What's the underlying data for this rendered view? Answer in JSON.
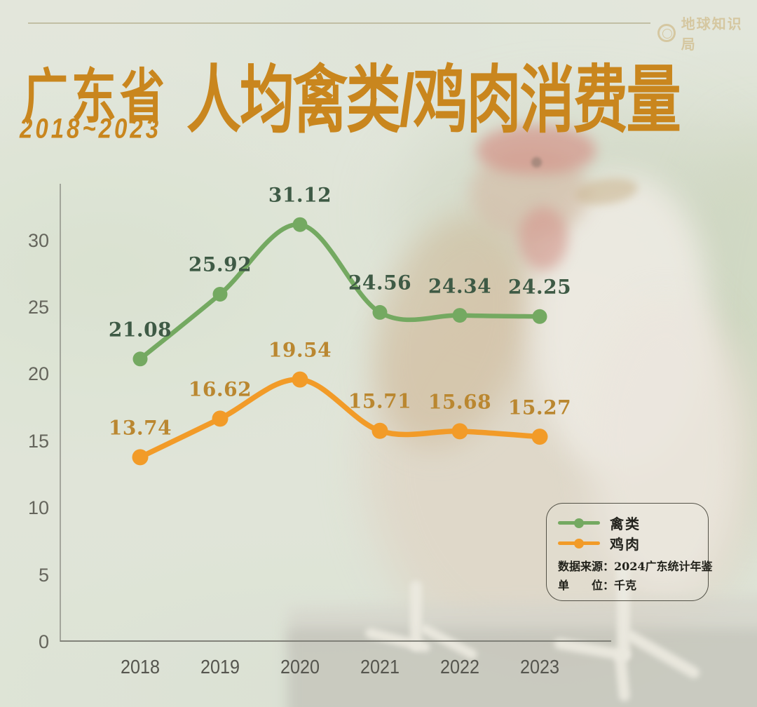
{
  "header": {
    "brand": "地球知识局",
    "region": "广东省",
    "years": "2018~2023",
    "title": "人均禽类/鸡肉消费量"
  },
  "chart_data": {
    "type": "line",
    "title": "广东省2018~2023人均禽类/鸡肉消费量",
    "unit": "千克",
    "x": [
      "2018",
      "2019",
      "2020",
      "2021",
      "2022",
      "2023"
    ],
    "yticks": [
      0,
      5,
      10,
      15,
      20,
      25,
      30
    ],
    "ylim": [
      0,
      33
    ],
    "grid": false,
    "legend_position": "lower-right",
    "series": [
      {
        "name": "禽类",
        "color": "#74a961",
        "label_color": "#3e5a45",
        "values": [
          21.08,
          25.92,
          31.12,
          24.56,
          24.34,
          24.25
        ]
      },
      {
        "name": "鸡肉",
        "color": "#f29b28",
        "label_color": "#ba8730",
        "values": [
          13.74,
          16.62,
          19.54,
          15.71,
          15.68,
          15.27
        ]
      }
    ]
  },
  "legend": {
    "source": "数据来源：2024广东统计年鉴",
    "unit": "单　　位：千克"
  },
  "colors": {
    "title_orange": "#c9861e",
    "axis_text_gray": "#62625a",
    "background_sage": "#e0e5d9",
    "brand_tan": "#d5c7a0"
  }
}
